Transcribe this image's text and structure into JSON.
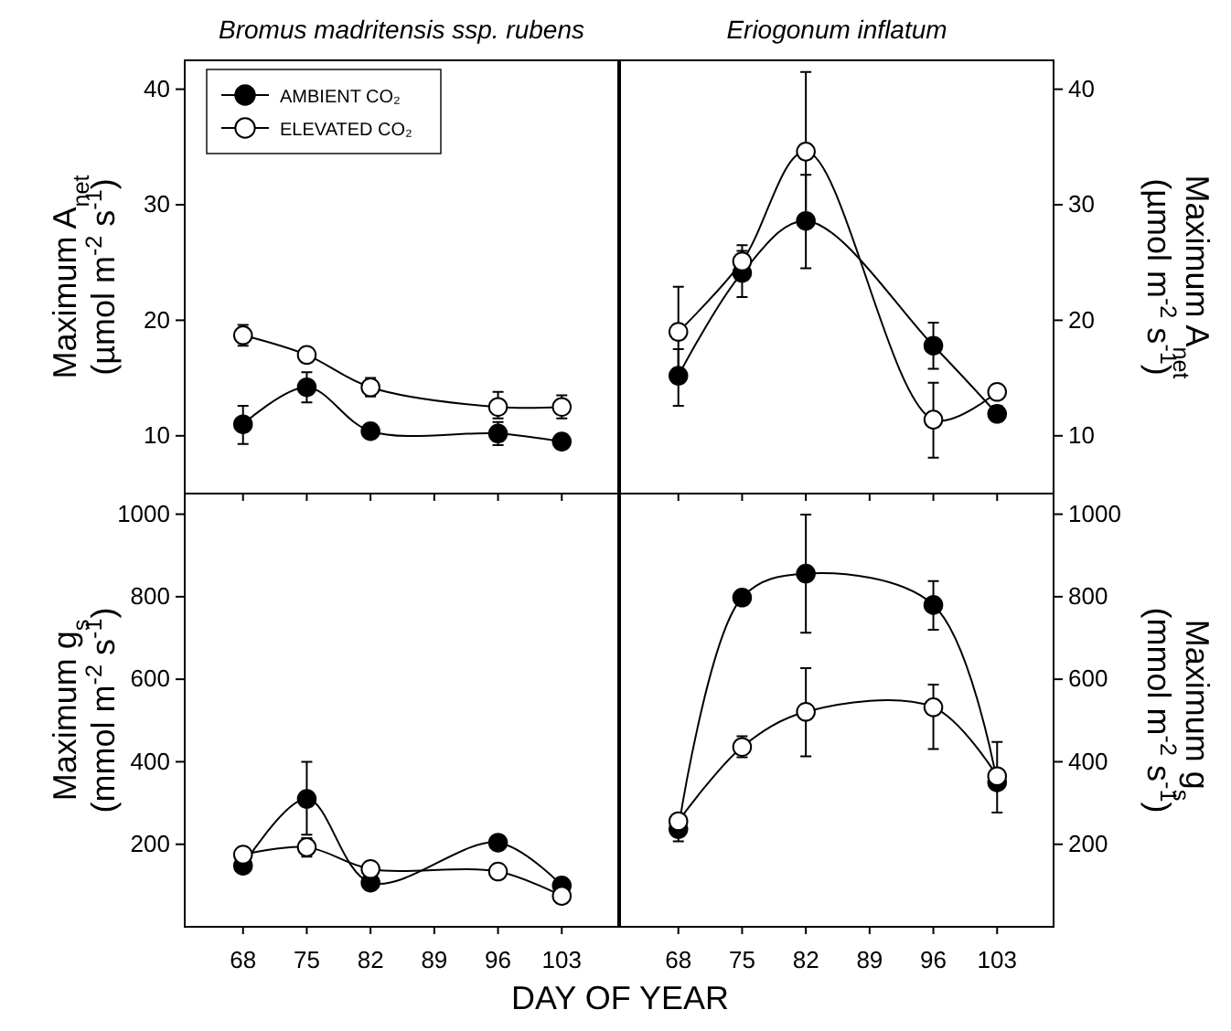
{
  "chart_data": [
    {
      "type": "line",
      "title": "Bromus madritensis ssp. rubens",
      "ylabel": "Maximum A$_{net}$ (µmol m$^{-2}$ s$^{-1}$)",
      "x": [
        68,
        75,
        82,
        96,
        103
      ],
      "xlim": [
        61.6,
        109.2
      ],
      "xticks": [
        68,
        75,
        82,
        89,
        96,
        103
      ],
      "ylim": [
        5,
        42.5
      ],
      "yticks": [
        10,
        20,
        30,
        40
      ],
      "tick_labels": "y",
      "marker": "circle",
      "legend": "top left",
      "grid": false,
      "series": [
        {
          "name": "AMBIENT CO₂",
          "color": "#000000",
          "values": [
            11,
            14.2,
            10.4,
            10.2,
            9.5
          ],
          "errors": [
            [
              9.3,
              12.6
            ],
            [
              12.9,
              15.5
            ],
            null,
            [
              9.2,
              11.2
            ],
            null
          ]
        },
        {
          "name": "ELEVATED CO₂",
          "color": "#ffffff",
          "values": [
            18.7,
            17.0,
            14.2,
            12.5,
            12.5
          ],
          "errors": [
            [
              17.8,
              19.6
            ],
            null,
            [
              13.4,
              15.0
            ],
            [
              11.5,
              13.8
            ],
            [
              11.5,
              13.5
            ]
          ]
        }
      ]
    },
    {
      "type": "line",
      "title": "Eriogonum inflatum",
      "ylabel": "Maximum A$_{net}$ (µmol m$^{-2}$ s$^{-1}$)",
      "x": [
        68,
        75,
        82,
        96,
        103
      ],
      "xlim": [
        61.6,
        109.2
      ],
      "xticks": [
        68,
        75,
        82,
        89,
        96,
        103
      ],
      "ylim": [
        5,
        42.5
      ],
      "yticks": [
        10,
        20,
        30,
        40
      ],
      "tick_labels": "y",
      "marker": "circle",
      "grid": false,
      "series": [
        {
          "color": "#000000",
          "values": [
            15.2,
            24.1,
            28.6,
            17.8,
            11.9
          ],
          "errors": [
            [
              12.6,
              17.5
            ],
            [
              22.0,
              26.0
            ],
            [
              28.2,
              32.6
            ],
            [
              15.8,
              19.8
            ],
            [
              11.3,
              12.6
            ]
          ]
        },
        {
          "color": "#ffffff",
          "values": [
            19.0,
            25.1,
            34.6,
            11.4,
            13.8
          ],
          "errors": [
            [
              15.5,
              22.9
            ],
            [
              24.2,
              26.5
            ],
            [
              24.5,
              41.5
            ],
            [
              8.1,
              14.6
            ],
            null
          ]
        }
      ]
    },
    {
      "type": "line",
      "ylabel": "Maximum g$_{s}$ (mmol m$^{-2}$ s$^{-1}$)",
      "xlabel": "DAY OF YEAR",
      "x": [
        68,
        75,
        82,
        96,
        103
      ],
      "xlim": [
        61.6,
        109.2
      ],
      "xticks": [
        68,
        75,
        82,
        89,
        96,
        103
      ],
      "ylim": [
        0,
        1050
      ],
      "yticks": [
        200,
        400,
        600,
        800,
        1000
      ],
      "marker": "circle",
      "grid": false,
      "series": [
        {
          "color": "#000000",
          "values": [
            148,
            310,
            107,
            204,
            100
          ],
          "errors": [
            null,
            [
              223,
              400
            ],
            null,
            null,
            null
          ]
        },
        {
          "color": "#ffffff",
          "values": [
            175,
            193,
            140,
            134,
            75
          ],
          "errors": [
            null,
            [
              170,
              215
            ],
            null,
            null,
            null
          ]
        }
      ]
    },
    {
      "type": "line",
      "ylabel": "Maximum g$_{s}$ (mmol m$^{-2}$ s$^{-1}$)",
      "x": [
        68,
        75,
        82,
        96,
        103
      ],
      "xlim": [
        61.6,
        109.2
      ],
      "xticks": [
        68,
        75,
        82,
        89,
        96,
        103
      ],
      "ylim": [
        0,
        1050
      ],
      "yticks": [
        200,
        400,
        600,
        800,
        1000
      ],
      "marker": "circle",
      "grid": false,
      "series": [
        {
          "color": "#000000",
          "values": [
            237,
            798,
            856,
            780,
            350
          ],
          "errors": [
            [
              207,
              266
            ],
            null,
            [
              713,
              999
            ],
            [
              720,
              838
            ],
            null
          ]
        },
        {
          "color": "#ffffff",
          "values": [
            256,
            436,
            521,
            532,
            365
          ],
          "errors": [
            null,
            [
              411,
              462
            ],
            [
              413,
              627
            ],
            [
              431,
              587
            ],
            [
              277,
              448
            ]
          ]
        }
      ]
    }
  ]
}
